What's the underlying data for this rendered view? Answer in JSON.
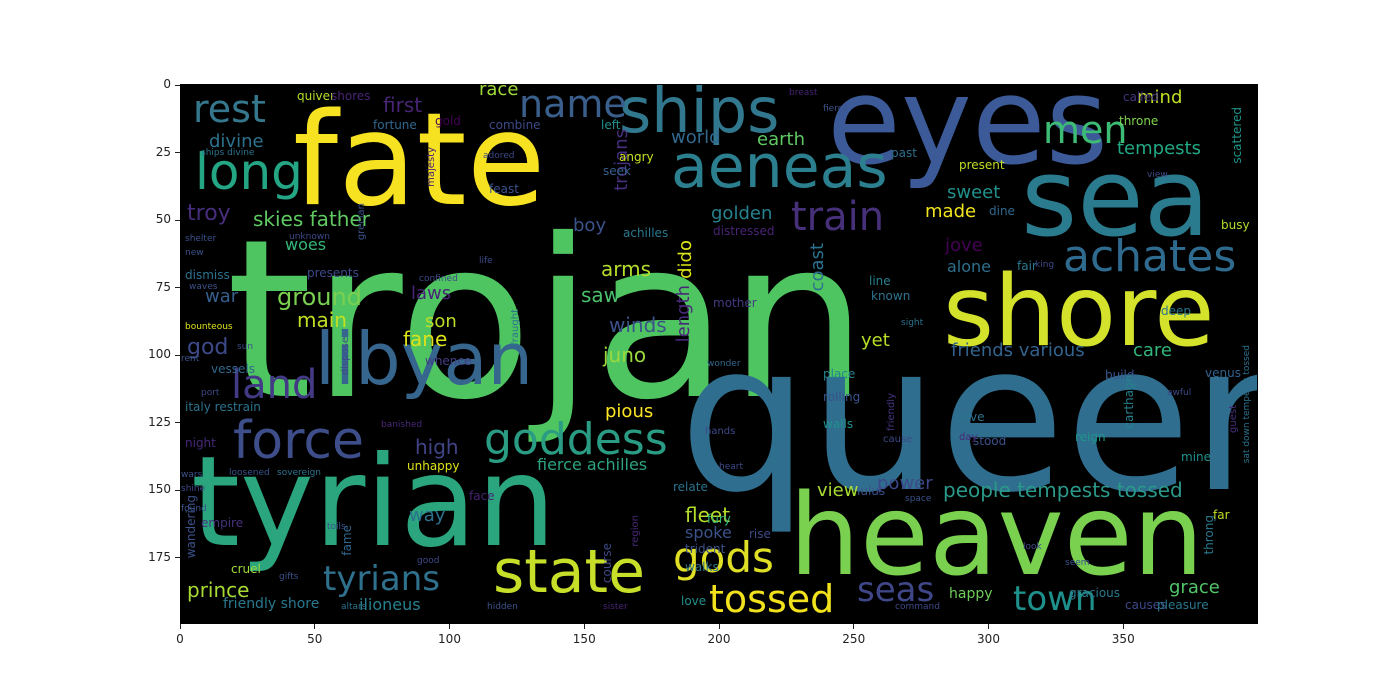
{
  "plot": {
    "background": "#000000",
    "x_ticks": [
      "0",
      "50",
      "100",
      "150",
      "200",
      "250",
      "300",
      "350"
    ],
    "y_ticks": [
      "0",
      "25",
      "50",
      "75",
      "100",
      "125",
      "150",
      "175"
    ]
  },
  "words": [
    {
      "text": "trojan",
      "color": "#4fc561"
    },
    {
      "text": "queen",
      "color": "#2f6e8e"
    },
    {
      "text": "fate",
      "color": "#f7e221"
    },
    {
      "text": "eyes",
      "color": "#3d5a98"
    },
    {
      "text": "sea",
      "color": "#2a7b8e"
    },
    {
      "text": "tyrian",
      "color": "#2aa57e"
    },
    {
      "text": "heaven",
      "color": "#79d14f"
    },
    {
      "text": "shore",
      "color": "#d4e22b"
    },
    {
      "text": "libyan",
      "color": "#36658e"
    },
    {
      "text": "ships",
      "color": "#31788e"
    },
    {
      "text": "aeneas",
      "color": "#2b7f8e"
    },
    {
      "text": "state",
      "color": "#c8df29"
    },
    {
      "text": "force",
      "color": "#3e4e8a"
    },
    {
      "text": "goddess",
      "color": "#2a9c84"
    },
    {
      "text": "achates",
      "color": "#2f6b8e"
    },
    {
      "text": "long",
      "color": "#24a584"
    },
    {
      "text": "rest",
      "color": "#35788d"
    },
    {
      "text": "name",
      "color": "#3a5f8d"
    },
    {
      "text": "train",
      "color": "#47307a"
    },
    {
      "text": "men",
      "color": "#3cbc74"
    },
    {
      "text": "land",
      "color": "#433a85"
    },
    {
      "text": "tyrians",
      "color": "#2f708d"
    },
    {
      "text": "gods",
      "color": "#dfe025"
    },
    {
      "text": "tossed",
      "color": "#f2e11d"
    },
    {
      "text": "seas",
      "color": "#3f4788"
    },
    {
      "text": "town",
      "color": "#1f918c"
    },
    {
      "text": "prince",
      "color": "#a7db33"
    },
    {
      "text": "people tempests tossed",
      "color": "#2a998a"
    },
    {
      "text": "fierce achilles",
      "color": "#2ca481"
    },
    {
      "text": "skies father",
      "color": "#5fca61"
    },
    {
      "text": "ground",
      "color": "#7ad151"
    },
    {
      "text": "main",
      "color": "#c2df23"
    },
    {
      "text": "son",
      "color": "#bdde26"
    },
    {
      "text": "fane",
      "color": "#dde318"
    },
    {
      "text": "juno",
      "color": "#9bd93c"
    },
    {
      "text": "winds",
      "color": "#3b528b"
    },
    {
      "text": "saw",
      "color": "#4ac16d"
    },
    {
      "text": "arms",
      "color": "#b6de2b"
    },
    {
      "text": "laws",
      "color": "#482677"
    },
    {
      "text": "woes",
      "color": "#35b779"
    },
    {
      "text": "troy",
      "color": "#472e7c"
    },
    {
      "text": "god",
      "color": "#3e4a89"
    },
    {
      "text": "war",
      "color": "#355f8d"
    },
    {
      "text": "divine",
      "color": "#2c728e"
    },
    {
      "text": "first",
      "color": "#482475"
    },
    {
      "text": "race",
      "color": "#a0da39"
    },
    {
      "text": "world",
      "color": "#31688e"
    },
    {
      "text": "earth",
      "color": "#5ec962"
    },
    {
      "text": "boy",
      "color": "#3b528b"
    },
    {
      "text": "golden",
      "color": "#26828e"
    },
    {
      "text": "made",
      "color": "#f1e51d"
    },
    {
      "text": "sweet",
      "color": "#21918c"
    },
    {
      "text": "tempests",
      "color": "#22a884"
    },
    {
      "text": "mind",
      "color": "#c2df23"
    },
    {
      "text": "jove",
      "color": "#440154"
    },
    {
      "text": "alone",
      "color": "#2d708e"
    },
    {
      "text": "friends various",
      "color": "#33638d"
    },
    {
      "text": "care",
      "color": "#31b57b"
    },
    {
      "text": "view",
      "color": "#a8db34"
    },
    {
      "text": "power",
      "color": "#3e4989"
    },
    {
      "text": "way",
      "color": "#2c728e"
    },
    {
      "text": "fleet",
      "color": "#b5de2b"
    },
    {
      "text": "spoke",
      "color": "#3b528b"
    },
    {
      "text": "pious",
      "color": "#fde725"
    },
    {
      "text": "high",
      "color": "#414487"
    },
    {
      "text": "yet",
      "color": "#b8de29"
    },
    {
      "text": "grace",
      "color": "#52c569"
    },
    {
      "text": "happy",
      "color": "#6ece58"
    },
    {
      "text": "ilioneus",
      "color": "#27808e"
    },
    {
      "text": "friendly shore",
      "color": "#2a788e"
    },
    {
      "text": "trojans",
      "color": "#472f7d"
    },
    {
      "text": "dido",
      "color": "#dde318"
    },
    {
      "text": "length",
      "color": "#482878"
    },
    {
      "text": "coast",
      "color": "#2c728e"
    },
    {
      "text": "quiver",
      "color": "#b5de2b"
    },
    {
      "text": "shores",
      "color": "#482475"
    },
    {
      "text": "fortune",
      "color": "#31688e"
    },
    {
      "text": "gold",
      "color": "#440154"
    },
    {
      "text": "combine",
      "color": "#3e4a89"
    },
    {
      "text": "left",
      "color": "#21918c"
    },
    {
      "text": "angry",
      "color": "#c8e020"
    },
    {
      "text": "feast",
      "color": "#3b528b"
    },
    {
      "text": "seek",
      "color": "#355f8d"
    },
    {
      "text": "achilles",
      "color": "#2a788e"
    },
    {
      "text": "distressed",
      "color": "#482374"
    },
    {
      "text": "called",
      "color": "#46337f"
    },
    {
      "text": "throne",
      "color": "#7fd34e"
    },
    {
      "text": "scattered",
      "color": "#1f968b"
    },
    {
      "text": "present",
      "color": "#c0df25"
    },
    {
      "text": "past",
      "color": "#2e6f8e"
    },
    {
      "text": "dine",
      "color": "#31688e"
    },
    {
      "text": "busy",
      "color": "#b2dd2d"
    },
    {
      "text": "fair",
      "color": "#2a788e"
    },
    {
      "text": "dismiss",
      "color": "#2c728e"
    },
    {
      "text": "presents",
      "color": "#3e4989"
    },
    {
      "text": "mother",
      "color": "#443983"
    },
    {
      "text": "line",
      "color": "#27808e"
    },
    {
      "text": "known",
      "color": "#2c728e"
    },
    {
      "text": "deep",
      "color": "#2a768e"
    },
    {
      "text": "whence",
      "color": "#433e85"
    },
    {
      "text": "vessels",
      "color": "#31688e"
    },
    {
      "text": "place",
      "color": "#25838e"
    },
    {
      "text": "build",
      "color": "#39568c"
    },
    {
      "text": "italy restrain",
      "color": "#2c728e"
    },
    {
      "text": "rolling",
      "color": "#3b528b"
    },
    {
      "text": "walls",
      "color": "#21918c"
    },
    {
      "text": "carthage",
      "color": "#26828e"
    },
    {
      "text": "night",
      "color": "#482878"
    },
    {
      "text": "gave",
      "color": "#2c728e"
    },
    {
      "text": "stood",
      "color": "#3b528b"
    },
    {
      "text": "reign",
      "color": "#1f968b"
    },
    {
      "text": "unhappy",
      "color": "#dde318"
    },
    {
      "text": "relate",
      "color": "#2c728e"
    },
    {
      "text": "iulus",
      "color": "#3b528b"
    },
    {
      "text": "fury",
      "color": "#35b779"
    },
    {
      "text": "rise",
      "color": "#3e4a89"
    },
    {
      "text": "empire",
      "color": "#46327e"
    },
    {
      "text": "cruel",
      "color": "#a0da39"
    },
    {
      "text": "walks",
      "color": "#2c728e"
    },
    {
      "text": "trident",
      "color": "#3b528b"
    },
    {
      "text": "love",
      "color": "#21918c"
    },
    {
      "text": "gracious",
      "color": "#2a788e"
    },
    {
      "text": "causes",
      "color": "#3e4989"
    },
    {
      "text": "pleasure",
      "color": "#2a788e"
    },
    {
      "text": "wandering",
      "color": "#3b528b"
    },
    {
      "text": "fame",
      "color": "#31688e"
    },
    {
      "text": "face",
      "color": "#482475"
    },
    {
      "text": "course",
      "color": "#3e4a89"
    },
    {
      "text": "strangers",
      "color": "#2c728e"
    },
    {
      "text": "throng",
      "color": "#2a788e"
    },
    {
      "text": "far",
      "color": "#c2df23"
    },
    {
      "text": "mine",
      "color": "#21918c"
    },
    {
      "text": "venus",
      "color": "#33638d"
    },
    {
      "text": "hands",
      "color": "#3e4989"
    },
    {
      "text": "cause",
      "color": "#3e4a89"
    },
    {
      "text": "day",
      "color": "#482878"
    },
    {
      "text": "friendly",
      "color": "#46327e"
    },
    {
      "text": "guest",
      "color": "#472f7d"
    },
    {
      "text": "region",
      "color": "#482878"
    },
    {
      "text": "fraught",
      "color": "#2c728e"
    },
    {
      "text": "dispose",
      "color": "#3e4a89"
    },
    {
      "text": "grecian",
      "color": "#3b528b"
    },
    {
      "text": "majesty",
      "color": "#482475"
    },
    {
      "text": "port",
      "color": "#3e4989"
    },
    {
      "text": "sovereign",
      "color": "#2c728e"
    },
    {
      "text": "loosened",
      "color": "#3b528b"
    },
    {
      "text": "banished",
      "color": "#482878"
    },
    {
      "text": "bounteous",
      "color": "#dde318"
    },
    {
      "text": "command",
      "color": "#3e4a89"
    },
    {
      "text": "hidden",
      "color": "#3b528b"
    },
    {
      "text": "sister",
      "color": "#482475"
    },
    {
      "text": "unknown",
      "color": "#3e4989"
    },
    {
      "text": "altars",
      "color": "#2c728e"
    },
    {
      "text": "gifts",
      "color": "#3b528b"
    },
    {
      "text": "heart",
      "color": "#3e4a89"
    },
    {
      "text": "wonder",
      "color": "#31688e"
    },
    {
      "text": "sight",
      "color": "#2c728e"
    },
    {
      "text": "space",
      "color": "#3b528b"
    },
    {
      "text": "awful",
      "color": "#3e4a89"
    },
    {
      "text": "breast",
      "color": "#482475"
    },
    {
      "text": "fierce",
      "color": "#3b528b"
    },
    {
      "text": "adored",
      "color": "#3e4989"
    },
    {
      "text": "waves",
      "color": "#3b528b"
    },
    {
      "text": "life",
      "color": "#3e4a89"
    },
    {
      "text": "new",
      "color": "#3b528b"
    },
    {
      "text": "king",
      "color": "#3e4989"
    },
    {
      "text": "ships divine",
      "color": "#2c728e"
    },
    {
      "text": "wars",
      "color": "#3b528b"
    },
    {
      "text": "sun",
      "color": "#3e4a89"
    },
    {
      "text": "found",
      "color": "#3b528b"
    },
    {
      "text": "shine",
      "color": "#3e4989"
    },
    {
      "text": "rent",
      "color": "#3b528b"
    },
    {
      "text": "confined",
      "color": "#3e4a89"
    },
    {
      "text": "shelter",
      "color": "#3b528b"
    },
    {
      "text": "look",
      "color": "#3e4989"
    },
    {
      "text": "seem",
      "color": "#3b528b"
    },
    {
      "text": "good",
      "color": "#3e4a89"
    },
    {
      "text": "toils",
      "color": "#3b528b"
    },
    {
      "text": "view",
      "color": "#3e4989"
    },
    {
      "text": "sat down tempests tossed",
      "color": "#2c728e"
    }
  ]
}
